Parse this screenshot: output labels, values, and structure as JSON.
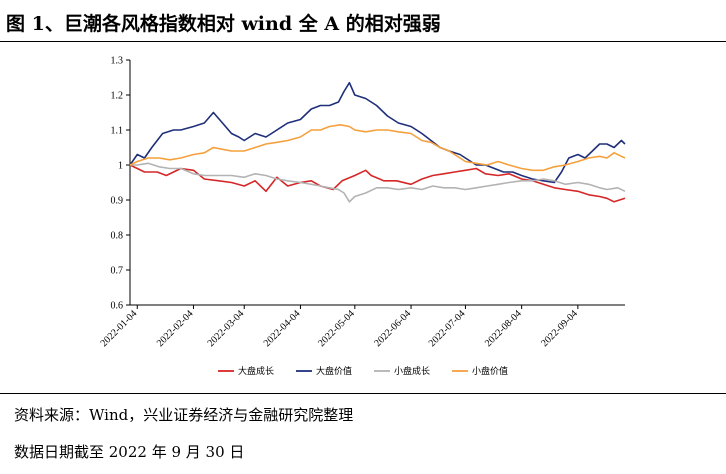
{
  "header": {
    "title": "图 1、巨潮各风格指数相对 wind 全 A 的相对强弱"
  },
  "footer": {
    "source": "资料来源：Wind，兴业证券经济与金融研究院整理",
    "date_note": "数据日期截至 2022 年 9 月 30 日"
  },
  "chart_data": {
    "type": "line",
    "title": "",
    "xlabel": "",
    "ylabel": "",
    "ylim": [
      0.6,
      1.3
    ],
    "yticks": [
      0.6,
      0.7,
      0.8,
      0.9,
      1,
      1.1,
      1.2,
      1.3
    ],
    "x_range": [
      "2021-12-31",
      "2022-09-30"
    ],
    "x_tick_labels": [
      "2022-01-04",
      "2022-02-04",
      "2022-03-04",
      "2022-04-04",
      "2022-05-04",
      "2022-06-04",
      "2022-07-04",
      "2022-08-04",
      "2022-09-04"
    ],
    "grid": false,
    "legend_position": "bottom",
    "series": [
      {
        "name": "大盘成长",
        "color": "#d62728",
        "points": [
          [
            "2021-12-31",
            1.0
          ],
          [
            "2022-01-04",
            0.99
          ],
          [
            "2022-01-08",
            0.98
          ],
          [
            "2022-01-15",
            0.98
          ],
          [
            "2022-01-20",
            0.97
          ],
          [
            "2022-01-28",
            0.99
          ],
          [
            "2022-02-04",
            0.985
          ],
          [
            "2022-02-10",
            0.96
          ],
          [
            "2022-02-18",
            0.955
          ],
          [
            "2022-02-25",
            0.95
          ],
          [
            "2022-03-04",
            0.94
          ],
          [
            "2022-03-10",
            0.955
          ],
          [
            "2022-03-16",
            0.925
          ],
          [
            "2022-03-22",
            0.965
          ],
          [
            "2022-03-28",
            0.94
          ],
          [
            "2022-04-04",
            0.95
          ],
          [
            "2022-04-10",
            0.955
          ],
          [
            "2022-04-15",
            0.94
          ],
          [
            "2022-04-22",
            0.93
          ],
          [
            "2022-04-27",
            0.955
          ],
          [
            "2022-05-04",
            0.97
          ],
          [
            "2022-05-10",
            0.985
          ],
          [
            "2022-05-13",
            0.97
          ],
          [
            "2022-05-20",
            0.955
          ],
          [
            "2022-05-27",
            0.955
          ],
          [
            "2022-06-04",
            0.945
          ],
          [
            "2022-06-10",
            0.96
          ],
          [
            "2022-06-16",
            0.97
          ],
          [
            "2022-06-22",
            0.975
          ],
          [
            "2022-06-28",
            0.98
          ],
          [
            "2022-07-04",
            0.985
          ],
          [
            "2022-07-10",
            0.99
          ],
          [
            "2022-07-15",
            0.975
          ],
          [
            "2022-07-22",
            0.97
          ],
          [
            "2022-07-28",
            0.975
          ],
          [
            "2022-08-04",
            0.96
          ],
          [
            "2022-08-10",
            0.955
          ],
          [
            "2022-08-16",
            0.945
          ],
          [
            "2022-08-22",
            0.935
          ],
          [
            "2022-08-28",
            0.93
          ],
          [
            "2022-09-04",
            0.925
          ],
          [
            "2022-09-10",
            0.915
          ],
          [
            "2022-09-16",
            0.91
          ],
          [
            "2022-09-20",
            0.905
          ],
          [
            "2022-09-24",
            0.895
          ],
          [
            "2022-09-30",
            0.905
          ]
        ]
      },
      {
        "name": "大盘价值",
        "color": "#1f2f7a",
        "points": [
          [
            "2021-12-31",
            1.0
          ],
          [
            "2022-01-04",
            1.03
          ],
          [
            "2022-01-08",
            1.02
          ],
          [
            "2022-01-12",
            1.05
          ],
          [
            "2022-01-18",
            1.09
          ],
          [
            "2022-01-24",
            1.1
          ],
          [
            "2022-01-28",
            1.1
          ],
          [
            "2022-02-04",
            1.11
          ],
          [
            "2022-02-10",
            1.12
          ],
          [
            "2022-02-15",
            1.15
          ],
          [
            "2022-02-20",
            1.12
          ],
          [
            "2022-02-25",
            1.09
          ],
          [
            "2022-03-01",
            1.08
          ],
          [
            "2022-03-04",
            1.07
          ],
          [
            "2022-03-10",
            1.09
          ],
          [
            "2022-03-16",
            1.08
          ],
          [
            "2022-03-22",
            1.1
          ],
          [
            "2022-03-28",
            1.12
          ],
          [
            "2022-04-04",
            1.13
          ],
          [
            "2022-04-10",
            1.16
          ],
          [
            "2022-04-15",
            1.17
          ],
          [
            "2022-04-20",
            1.17
          ],
          [
            "2022-04-25",
            1.18
          ],
          [
            "2022-04-28",
            1.21
          ],
          [
            "2022-05-01",
            1.235
          ],
          [
            "2022-05-04",
            1.2
          ],
          [
            "2022-05-10",
            1.19
          ],
          [
            "2022-05-16",
            1.17
          ],
          [
            "2022-05-22",
            1.14
          ],
          [
            "2022-05-28",
            1.12
          ],
          [
            "2022-06-04",
            1.11
          ],
          [
            "2022-06-10",
            1.09
          ],
          [
            "2022-06-15",
            1.07
          ],
          [
            "2022-06-20",
            1.05
          ],
          [
            "2022-06-25",
            1.04
          ],
          [
            "2022-07-01",
            1.03
          ],
          [
            "2022-07-04",
            1.02
          ],
          [
            "2022-07-10",
            1.0
          ],
          [
            "2022-07-15",
            1.0
          ],
          [
            "2022-07-20",
            0.99
          ],
          [
            "2022-07-25",
            0.98
          ],
          [
            "2022-07-30",
            0.98
          ],
          [
            "2022-08-04",
            0.97
          ],
          [
            "2022-08-10",
            0.96
          ],
          [
            "2022-08-16",
            0.955
          ],
          [
            "2022-08-22",
            0.95
          ],
          [
            "2022-08-26",
            0.98
          ],
          [
            "2022-08-30",
            1.02
          ],
          [
            "2022-09-04",
            1.03
          ],
          [
            "2022-09-08",
            1.02
          ],
          [
            "2022-09-12",
            1.04
          ],
          [
            "2022-09-16",
            1.06
          ],
          [
            "2022-09-20",
            1.06
          ],
          [
            "2022-09-24",
            1.05
          ],
          [
            "2022-09-28",
            1.07
          ],
          [
            "2022-09-30",
            1.06
          ]
        ]
      },
      {
        "name": "小盘成长",
        "color": "#b3b3b3",
        "points": [
          [
            "2021-12-31",
            1.0
          ],
          [
            "2022-01-04",
            1.0
          ],
          [
            "2022-01-10",
            1.005
          ],
          [
            "2022-01-16",
            0.995
          ],
          [
            "2022-01-22",
            0.99
          ],
          [
            "2022-01-28",
            0.99
          ],
          [
            "2022-02-04",
            0.975
          ],
          [
            "2022-02-10",
            0.97
          ],
          [
            "2022-02-18",
            0.97
          ],
          [
            "2022-02-25",
            0.97
          ],
          [
            "2022-03-04",
            0.965
          ],
          [
            "2022-03-10",
            0.975
          ],
          [
            "2022-03-16",
            0.97
          ],
          [
            "2022-03-22",
            0.96
          ],
          [
            "2022-03-28",
            0.955
          ],
          [
            "2022-04-04",
            0.95
          ],
          [
            "2022-04-10",
            0.945
          ],
          [
            "2022-04-15",
            0.94
          ],
          [
            "2022-04-20",
            0.935
          ],
          [
            "2022-04-25",
            0.93
          ],
          [
            "2022-04-28",
            0.92
          ],
          [
            "2022-05-01",
            0.895
          ],
          [
            "2022-05-04",
            0.91
          ],
          [
            "2022-05-10",
            0.92
          ],
          [
            "2022-05-16",
            0.935
          ],
          [
            "2022-05-22",
            0.935
          ],
          [
            "2022-05-28",
            0.93
          ],
          [
            "2022-06-04",
            0.935
          ],
          [
            "2022-06-10",
            0.93
          ],
          [
            "2022-06-16",
            0.94
          ],
          [
            "2022-06-22",
            0.935
          ],
          [
            "2022-06-28",
            0.935
          ],
          [
            "2022-07-04",
            0.93
          ],
          [
            "2022-07-10",
            0.935
          ],
          [
            "2022-07-16",
            0.94
          ],
          [
            "2022-07-22",
            0.945
          ],
          [
            "2022-07-28",
            0.95
          ],
          [
            "2022-08-04",
            0.955
          ],
          [
            "2022-08-10",
            0.955
          ],
          [
            "2022-08-16",
            0.96
          ],
          [
            "2022-08-22",
            0.955
          ],
          [
            "2022-08-28",
            0.945
          ],
          [
            "2022-09-04",
            0.95
          ],
          [
            "2022-09-10",
            0.945
          ],
          [
            "2022-09-16",
            0.935
          ],
          [
            "2022-09-20",
            0.93
          ],
          [
            "2022-09-26",
            0.935
          ],
          [
            "2022-09-30",
            0.925
          ]
        ]
      },
      {
        "name": "小盘价值",
        "color": "#f5a03c",
        "points": [
          [
            "2021-12-31",
            1.0
          ],
          [
            "2022-01-04",
            1.01
          ],
          [
            "2022-01-10",
            1.02
          ],
          [
            "2022-01-16",
            1.02
          ],
          [
            "2022-01-22",
            1.015
          ],
          [
            "2022-01-28",
            1.02
          ],
          [
            "2022-02-04",
            1.03
          ],
          [
            "2022-02-10",
            1.035
          ],
          [
            "2022-02-15",
            1.05
          ],
          [
            "2022-02-20",
            1.045
          ],
          [
            "2022-02-25",
            1.04
          ],
          [
            "2022-03-04",
            1.04
          ],
          [
            "2022-03-10",
            1.05
          ],
          [
            "2022-03-16",
            1.06
          ],
          [
            "2022-03-22",
            1.065
          ],
          [
            "2022-03-28",
            1.07
          ],
          [
            "2022-04-04",
            1.08
          ],
          [
            "2022-04-10",
            1.1
          ],
          [
            "2022-04-15",
            1.1
          ],
          [
            "2022-04-20",
            1.11
          ],
          [
            "2022-04-26",
            1.115
          ],
          [
            "2022-05-01",
            1.11
          ],
          [
            "2022-05-04",
            1.1
          ],
          [
            "2022-05-10",
            1.095
          ],
          [
            "2022-05-16",
            1.1
          ],
          [
            "2022-05-22",
            1.1
          ],
          [
            "2022-05-28",
            1.095
          ],
          [
            "2022-06-04",
            1.09
          ],
          [
            "2022-06-10",
            1.07
          ],
          [
            "2022-06-15",
            1.065
          ],
          [
            "2022-06-20",
            1.05
          ],
          [
            "2022-06-25",
            1.04
          ],
          [
            "2022-07-01",
            1.02
          ],
          [
            "2022-07-04",
            1.01
          ],
          [
            "2022-07-10",
            1.005
          ],
          [
            "2022-07-16",
            1.0
          ],
          [
            "2022-07-22",
            1.01
          ],
          [
            "2022-07-28",
            1.0
          ],
          [
            "2022-08-04",
            0.99
          ],
          [
            "2022-08-10",
            0.985
          ],
          [
            "2022-08-16",
            0.985
          ],
          [
            "2022-08-22",
            0.995
          ],
          [
            "2022-08-28",
            1.0
          ],
          [
            "2022-09-04",
            1.01
          ],
          [
            "2022-09-10",
            1.02
          ],
          [
            "2022-09-16",
            1.025
          ],
          [
            "2022-09-20",
            1.02
          ],
          [
            "2022-09-24",
            1.035
          ],
          [
            "2022-09-28",
            1.025
          ],
          [
            "2022-09-30",
            1.02
          ]
        ]
      }
    ]
  }
}
